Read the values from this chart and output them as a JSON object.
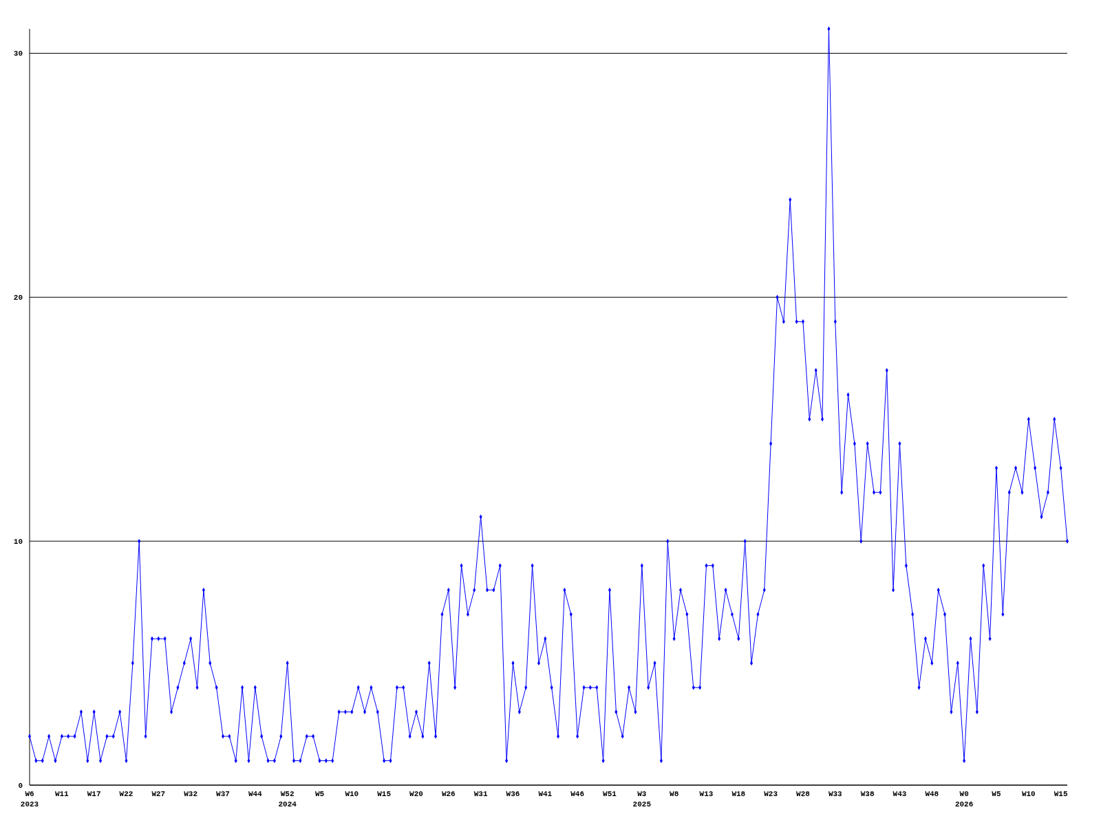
{
  "chart_data": {
    "type": "line",
    "categories": [
      "W6\n2023",
      null,
      null,
      null,
      null,
      "W11",
      null,
      null,
      null,
      null,
      "W17",
      null,
      null,
      null,
      null,
      "W22",
      null,
      null,
      null,
      null,
      "W27",
      null,
      null,
      null,
      null,
      "W32",
      null,
      null,
      null,
      null,
      "W37",
      null,
      null,
      null,
      null,
      "W44",
      null,
      null,
      null,
      null,
      "W52\n2024",
      null,
      null,
      null,
      null,
      "W5",
      null,
      null,
      null,
      null,
      "W10",
      null,
      null,
      null,
      null,
      "W15",
      null,
      null,
      null,
      null,
      "W20",
      null,
      null,
      null,
      null,
      "W26",
      null,
      null,
      null,
      null,
      "W31",
      null,
      null,
      null,
      null,
      "W36",
      null,
      null,
      null,
      null,
      "W41",
      null,
      null,
      null,
      null,
      "W46",
      null,
      null,
      null,
      null,
      "W51",
      null,
      null,
      null,
      null,
      "W3\n2025",
      null,
      null,
      null,
      null,
      "W8",
      null,
      null,
      null,
      null,
      "W13",
      null,
      null,
      null,
      null,
      "W18",
      null,
      null,
      null,
      null,
      "W23",
      null,
      null,
      null,
      null,
      "W28",
      null,
      null,
      null,
      null,
      "W33",
      null,
      null,
      null,
      null,
      "W38",
      null,
      null,
      null,
      null,
      "W43",
      null,
      null,
      null,
      null,
      "W48",
      null,
      null,
      null,
      null,
      "W0\n2026",
      null,
      null,
      null,
      null,
      "W5",
      null,
      null,
      null,
      null,
      "W10",
      null,
      null,
      null,
      null,
      "W15",
      null
    ],
    "series": [
      {
        "color": "#0000ff",
        "values": [
          2,
          1,
          1,
          2,
          1,
          2,
          2,
          2,
          3,
          1,
          3,
          1,
          2,
          2,
          3,
          1,
          5,
          10,
          2,
          6,
          6,
          6,
          3,
          4,
          5,
          6,
          4,
          8,
          5,
          4,
          2,
          2,
          1,
          4,
          1,
          4,
          2,
          1,
          1,
          2,
          5,
          1,
          1,
          2,
          2,
          1,
          1,
          1,
          3,
          3,
          3,
          4,
          3,
          4,
          3,
          1,
          1,
          4,
          4,
          2,
          3,
          2,
          5,
          2,
          7,
          8,
          4,
          9,
          7,
          8,
          11,
          8,
          8,
          9,
          1,
          5,
          3,
          4,
          9,
          5,
          6,
          4,
          2,
          8,
          7,
          2,
          4,
          4,
          4,
          1,
          8,
          3,
          2,
          4,
          3,
          9,
          4,
          5,
          1,
          10,
          6,
          8,
          7,
          4,
          4,
          9,
          9,
          6,
          8,
          7,
          6,
          10,
          5,
          7,
          8,
          14,
          20,
          19,
          24,
          19,
          19,
          15,
          17,
          15,
          31,
          19,
          12,
          16,
          14,
          10,
          14,
          12,
          12,
          17,
          8,
          14,
          9,
          7,
          4,
          6,
          5,
          8,
          7,
          3,
          5,
          1,
          6,
          3,
          9,
          6,
          13,
          7,
          12,
          13,
          12,
          15,
          13,
          11,
          12,
          15,
          13,
          10
        ]
      }
    ],
    "ylim": [
      0,
      31
    ],
    "yticks": [
      0,
      10,
      20,
      30
    ],
    "grid": "y",
    "marker": "diamond",
    "line_style": "solid"
  }
}
